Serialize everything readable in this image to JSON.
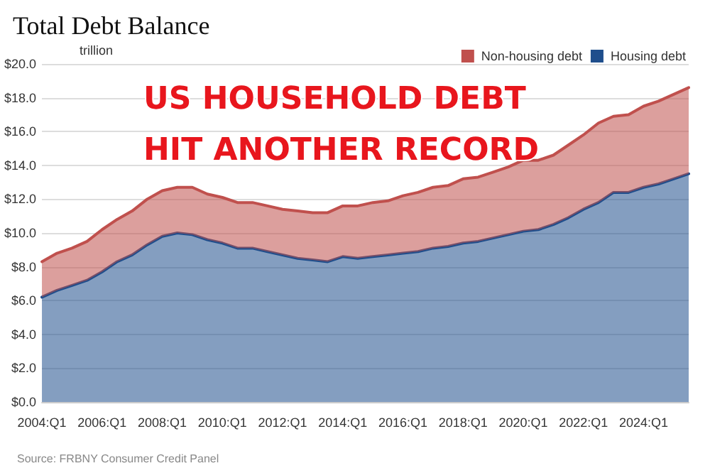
{
  "chart_data": {
    "type": "area",
    "title": "Total Debt Balance",
    "ylabel": "trillion",
    "annotations": [
      "US HOUSEHOLD DEBT\nHIT ANOTHER RECORD",
      "Source: FRBNY Consumer Credit Panel"
    ],
    "categories": [
      "2004:Q1",
      null,
      null,
      null,
      "2006:Q1",
      null,
      null,
      null,
      "2008:Q1",
      null,
      null,
      null,
      "2010:Q1",
      null,
      null,
      null,
      "2012:Q1",
      null,
      null,
      null,
      "2014:Q1",
      null,
      null,
      null,
      "2016:Q1",
      null,
      null,
      null,
      "2018:Q1",
      null,
      null,
      null,
      "2020:Q1",
      null,
      null,
      null,
      "2022:Q1",
      null,
      null,
      null,
      "2024:Q1",
      null,
      null,
      null
    ],
    "series": [
      {
        "name": "Housing debt",
        "color": "#1f4e8c",
        "values": [
          6.2,
          6.6,
          6.9,
          7.2,
          7.7,
          8.3,
          8.7,
          9.3,
          9.8,
          10.0,
          9.9,
          9.6,
          9.4,
          9.1,
          9.1,
          8.9,
          8.7,
          8.5,
          8.4,
          8.3,
          8.6,
          8.5,
          8.6,
          8.7,
          8.8,
          8.9,
          9.1,
          9.2,
          9.4,
          9.5,
          9.7,
          9.9,
          10.1,
          10.2,
          10.5,
          10.9,
          11.4,
          11.8,
          12.4,
          12.4,
          12.7,
          12.9,
          13.2,
          13.5
        ]
      },
      {
        "name": "Non-housing debt",
        "color": "#c0504d",
        "values": [
          2.1,
          2.2,
          2.2,
          2.3,
          2.5,
          2.5,
          2.6,
          2.7,
          2.7,
          2.7,
          2.8,
          2.7,
          2.7,
          2.7,
          2.7,
          2.7,
          2.7,
          2.8,
          2.8,
          2.9,
          3.0,
          3.1,
          3.2,
          3.2,
          3.4,
          3.5,
          3.6,
          3.6,
          3.8,
          3.8,
          3.9,
          4.0,
          4.2,
          4.1,
          4.1,
          4.3,
          4.4,
          4.7,
          4.5,
          4.6,
          4.8,
          4.9,
          5.0,
          5.1
        ]
      }
    ],
    "stacked": true,
    "ylim": [
      0,
      20
    ],
    "yticks": [
      {
        "value": 0,
        "label": "$0.0"
      },
      {
        "value": 2,
        "label": "$2.0"
      },
      {
        "value": 4,
        "label": "$4.0"
      },
      {
        "value": 6,
        "label": "$6.0"
      },
      {
        "value": 8,
        "label": "$8.0"
      },
      {
        "value": 10,
        "label": "$10.0"
      },
      {
        "value": 12,
        "label": "$12.0"
      },
      {
        "value": 14,
        "label": "$14.0"
      },
      {
        "value": 16,
        "label": "$16.0"
      },
      {
        "value": 18,
        "label": "$18.0"
      },
      {
        "value": 20,
        "label": "$20.0"
      }
    ],
    "grid": "y",
    "legend": "top right",
    "marker": "none",
    "line_style": "solid"
  }
}
